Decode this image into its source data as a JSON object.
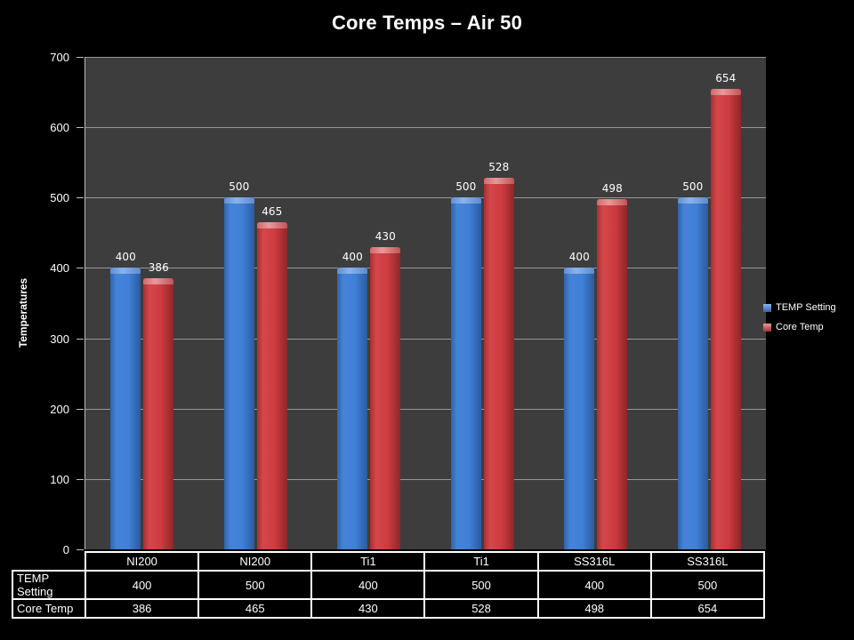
{
  "chart_data": {
    "type": "bar",
    "title": "Core Temps – Air 50",
    "ylabel": "Temperatures",
    "ylim": [
      0,
      700
    ],
    "ytick_step": 100,
    "grid": true,
    "legend_position": "right",
    "data_table_shown": true,
    "categories": [
      "NI200",
      "NI200",
      "Ti1",
      "Ti1",
      "SS316L",
      "SS316L"
    ],
    "series": [
      {
        "name": "TEMP Setting",
        "color": "#3f7ed3",
        "values": [
          400,
          500,
          400,
          500,
          400,
          500
        ]
      },
      {
        "name": "Core Temp",
        "color": "#cc3b3f",
        "values": [
          386,
          465,
          430,
          528,
          498,
          654
        ]
      }
    ],
    "colors": {
      "background": "#000000",
      "plot_background": "#3d3d3d",
      "gridline": "#a8a8a8",
      "axis": "#c0c0c0",
      "text": "#ffffff",
      "table_border": "#ffffff"
    }
  }
}
